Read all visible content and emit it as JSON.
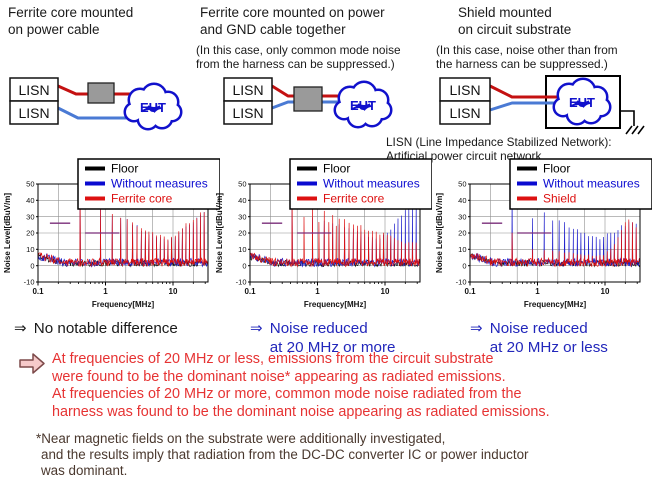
{
  "labels": {
    "lisn": "LISN",
    "eut": "EUT"
  },
  "columns": [
    {
      "title": "Ferrite core mounted\non power cable",
      "note": ""
    },
    {
      "title": "Ferrite core mounted on power\nand GND cable together",
      "note": "(In this case, only common mode noise\nfrom the harness can be suppressed.)"
    },
    {
      "title": "Shield mounted\non circuit substrate",
      "note": "(In this case, noise other than from\nthe harness can be suppressed.)"
    }
  ],
  "lisn_note": "LISN (Line Impedance Stabilized Network):\nArtificial power circuit network",
  "conclusions": [
    {
      "symbol": "⇒",
      "text": "No notable difference",
      "color": "#1a1a1a"
    },
    {
      "symbol": "⇒",
      "text": "Noise reduced\nat 20 MHz or more",
      "color": "#2227bb"
    },
    {
      "symbol": "⇒",
      "text": "Noise reduced\nat 20 MHz or less",
      "color": "#2227bb"
    }
  ],
  "summary": {
    "color": "#e63333",
    "lines": [
      "At frequencies of 20 MHz or less, emissions from the circuit substrate",
      "were found to be the dominant noise* appearing as radiated emissions.",
      "At frequencies of 20 MHz or more, common mode noise radiated from the",
      "harness was found to be the dominant noise appearing as radiated emissions."
    ]
  },
  "footnote": {
    "color": "#4a382e",
    "lines": [
      "*Near magnetic fields on the substrate were additionally investigated,",
      "and the results imply that radiation from the DC-DC converter IC or power inductor",
      "was dominant."
    ]
  },
  "colors": {
    "wire_red": "#c41111",
    "wire_blue": "#4a7ad4",
    "cloud_blue": "#1111cc",
    "ferrite_gray": "#9a9a9a",
    "limit_purple": "#7a2d7a",
    "blue_text": "#2227bb",
    "red_text": "#e63333"
  },
  "chart_data": [
    {
      "type": "line",
      "xlabel": "Frequency[MHz]",
      "ylabel": "Noise Level[dBuV/m]",
      "xlim": [
        0.1,
        33
      ],
      "ylim": [
        -10,
        50
      ],
      "xticks": [
        0.1,
        1,
        10
      ],
      "yticks": [
        50,
        40,
        30,
        20,
        10,
        0,
        -10
      ],
      "grid_x": [
        0.2,
        0.5,
        1,
        2,
        5,
        10,
        20
      ],
      "grid": true,
      "legend_pos": "top-right",
      "limit_color": "#7a2d7a",
      "limit_segments": [
        {
          "y": 26,
          "x1": 0.15,
          "x2": 0.3
        },
        {
          "y": 20,
          "x1": 0.5,
          "x2": 1.6
        }
      ],
      "legend": [
        {
          "label": "Floor",
          "color": "#000000"
        },
        {
          "label": "Without measures",
          "color": "#0a0ad0"
        },
        {
          "label": "Ferrite core",
          "color": "#dd1111"
        }
      ],
      "series": [
        {
          "name": "Floor",
          "color": "#111111",
          "base": 1.5,
          "jitter": 2,
          "start_bump": 4,
          "spikes": []
        },
        {
          "name": "Without measures",
          "color": "#2020cc",
          "base": 2,
          "jitter": 2.5,
          "start_bump": 4,
          "spikes": [
            [
              0.42,
              43
            ],
            [
              0.84,
              35
            ],
            [
              1.26,
              31
            ],
            [
              1.68,
              29
            ],
            [
              2.1,
              28
            ],
            [
              2.52,
              26
            ],
            [
              2.94,
              24
            ],
            [
              3.4,
              22
            ],
            [
              3.9,
              21
            ],
            [
              4.4,
              20
            ],
            [
              5.0,
              19
            ],
            [
              5.7,
              18
            ],
            [
              6.5,
              17
            ],
            [
              7.4,
              17
            ],
            [
              8.4,
              16
            ],
            [
              9.5,
              17
            ],
            [
              10.8,
              18
            ],
            [
              12.2,
              20
            ],
            [
              13.8,
              22
            ],
            [
              15.6,
              24
            ],
            [
              17.6,
              25
            ],
            [
              20,
              27
            ],
            [
              22.5,
              29
            ],
            [
              25.5,
              31
            ],
            [
              29,
              32
            ]
          ]
        },
        {
          "name": "Ferrite core",
          "color": "#dd1111",
          "base": 2,
          "jitter": 2.5,
          "start_bump": 4,
          "spikes": [
            [
              0.42,
              44
            ],
            [
              0.84,
              36
            ],
            [
              1.26,
              32
            ],
            [
              1.68,
              30
            ],
            [
              2.1,
              29
            ],
            [
              2.52,
              27
            ],
            [
              2.94,
              25
            ],
            [
              3.4,
              23
            ],
            [
              3.9,
              22
            ],
            [
              4.4,
              21
            ],
            [
              5.0,
              20
            ],
            [
              5.7,
              19
            ],
            [
              6.5,
              18
            ],
            [
              7.4,
              18
            ],
            [
              8.4,
              17
            ],
            [
              9.5,
              18
            ],
            [
              10.8,
              19
            ],
            [
              12.2,
              21
            ],
            [
              13.8,
              23
            ],
            [
              15.6,
              25
            ],
            [
              17.6,
              26
            ],
            [
              20,
              28
            ],
            [
              22.5,
              30
            ],
            [
              25.5,
              32
            ],
            [
              29,
              33
            ]
          ]
        }
      ]
    },
    {
      "type": "line",
      "xlabel": "Frequency[MHz]",
      "ylabel": "Noise Level[dBuV/m]",
      "xlim": [
        0.1,
        33
      ],
      "ylim": [
        -10,
        50
      ],
      "xticks": [
        0.1,
        1,
        10
      ],
      "yticks": [
        50,
        40,
        30,
        20,
        10,
        0,
        -10
      ],
      "grid_x": [
        0.2,
        0.5,
        1,
        2,
        5,
        10,
        20
      ],
      "grid": true,
      "legend_pos": "top-right",
      "limit_color": "#7a2d7a",
      "limit_segments": [
        {
          "y": 26,
          "x1": 0.15,
          "x2": 0.3
        },
        {
          "y": 20,
          "x1": 0.5,
          "x2": 1.6
        }
      ],
      "legend": [
        {
          "label": "Floor",
          "color": "#000000"
        },
        {
          "label": "Without measures",
          "color": "#0a0ad0"
        },
        {
          "label": "Ferrite core",
          "color": "#dd1111"
        }
      ],
      "series": [
        {
          "name": "Floor",
          "color": "#111111",
          "base": 1.5,
          "jitter": 2,
          "start_bump": 4,
          "spikes": []
        },
        {
          "name": "Without measures",
          "color": "#2020cc",
          "base": 2,
          "jitter": 2.5,
          "start_bump": 4,
          "spikes": [
            [
              0.42,
              38
            ],
            [
              0.84,
              30
            ],
            [
              1.26,
              28
            ],
            [
              1.68,
              26
            ],
            [
              2.1,
              25
            ],
            [
              2.52,
              24
            ],
            [
              2.94,
              23
            ],
            [
              3.4,
              22
            ],
            [
              3.9,
              21
            ],
            [
              4.4,
              20
            ],
            [
              5.0,
              19
            ],
            [
              5.7,
              18
            ],
            [
              6.5,
              18
            ],
            [
              7.4,
              17
            ],
            [
              8.4,
              17
            ],
            [
              9.5,
              18
            ],
            [
              10.8,
              20
            ],
            [
              12.2,
              22
            ],
            [
              13.8,
              25
            ],
            [
              15.6,
              28
            ],
            [
              17.6,
              31
            ],
            [
              20,
              33
            ],
            [
              22.5,
              35
            ],
            [
              25.5,
              37
            ],
            [
              29,
              38
            ]
          ]
        },
        {
          "name": "Ferrite core",
          "color": "#dd1111",
          "base": 2,
          "jitter": 2.5,
          "start_bump": 4,
          "spikes": [
            [
              0.42,
              44
            ],
            [
              0.63,
              29
            ],
            [
              0.84,
              37
            ],
            [
              1.05,
              27
            ],
            [
              1.26,
              33
            ],
            [
              1.47,
              26
            ],
            [
              1.68,
              31
            ],
            [
              1.9,
              25
            ],
            [
              2.1,
              29
            ],
            [
              2.52,
              28
            ],
            [
              2.94,
              27
            ],
            [
              3.4,
              26
            ],
            [
              3.9,
              25
            ],
            [
              4.4,
              24
            ],
            [
              5.0,
              23
            ],
            [
              5.7,
              22
            ],
            [
              6.5,
              21
            ],
            [
              7.4,
              20
            ],
            [
              8.4,
              20
            ],
            [
              9.5,
              20
            ],
            [
              10.8,
              19
            ],
            [
              12.2,
              18
            ],
            [
              13.8,
              17
            ],
            [
              15.6,
              16
            ],
            [
              17.6,
              15
            ],
            [
              20,
              14
            ],
            [
              22.5,
              14
            ],
            [
              25.5,
              15
            ],
            [
              29,
              15
            ]
          ]
        }
      ]
    },
    {
      "type": "line",
      "xlabel": "Frequency[MHz]",
      "ylabel": "Noise Level[dBuV/m]",
      "xlim": [
        0.1,
        33
      ],
      "ylim": [
        -10,
        50
      ],
      "xticks": [
        0.1,
        1,
        10
      ],
      "yticks": [
        50,
        40,
        30,
        20,
        10,
        0,
        -10
      ],
      "grid_x": [
        0.2,
        0.5,
        1,
        2,
        5,
        10,
        20
      ],
      "grid": true,
      "legend_pos": "top-right",
      "limit_color": "#7a2d7a",
      "limit_segments": [
        {
          "y": 26,
          "x1": 0.15,
          "x2": 0.3
        },
        {
          "y": 20,
          "x1": 0.5,
          "x2": 1.6
        }
      ],
      "legend": [
        {
          "label": "Floor",
          "color": "#000000"
        },
        {
          "label": "Without measures",
          "color": "#0a0ad0"
        },
        {
          "label": "Shield",
          "color": "#dd1111"
        }
      ],
      "series": [
        {
          "name": "Floor",
          "color": "#111111",
          "base": 1.5,
          "jitter": 2,
          "start_bump": 4,
          "spikes": []
        },
        {
          "name": "Without measures",
          "color": "#2020cc",
          "base": 2,
          "jitter": 2.5,
          "start_bump": 4,
          "spikes": [
            [
              0.42,
              44
            ],
            [
              0.84,
              30
            ],
            [
              1.26,
              33
            ],
            [
              1.68,
              28
            ],
            [
              2.1,
              27
            ],
            [
              2.52,
              26
            ],
            [
              2.94,
              24
            ],
            [
              3.4,
              23
            ],
            [
              3.9,
              22
            ],
            [
              4.4,
              21
            ],
            [
              5.0,
              20
            ],
            [
              5.7,
              19
            ],
            [
              6.5,
              18
            ],
            [
              7.4,
              17
            ],
            [
              8.4,
              17
            ],
            [
              9.5,
              18
            ],
            [
              10.8,
              19
            ],
            [
              12.2,
              20
            ],
            [
              13.8,
              21
            ],
            [
              15.6,
              22
            ],
            [
              17.6,
              24
            ],
            [
              20,
              25
            ],
            [
              22.5,
              26
            ],
            [
              25.5,
              27
            ],
            [
              29,
              26
            ]
          ]
        },
        {
          "name": "Shield",
          "color": "#dd1111",
          "base": 2,
          "jitter": 2.5,
          "start_bump": 4,
          "spikes": [
            [
              0.42,
              21
            ],
            [
              0.84,
              11
            ],
            [
              1.26,
              10
            ],
            [
              1.68,
              9
            ],
            [
              2.1,
              9
            ],
            [
              2.52,
              8
            ],
            [
              2.94,
              8
            ],
            [
              3.4,
              7
            ],
            [
              3.9,
              7
            ],
            [
              4.4,
              7
            ],
            [
              5.0,
              6
            ],
            [
              5.7,
              6
            ],
            [
              6.5,
              6
            ],
            [
              7.4,
              6
            ],
            [
              8.4,
              6
            ],
            [
              9.5,
              7
            ],
            [
              10.8,
              8
            ],
            [
              12.2,
              10
            ],
            [
              13.8,
              13
            ],
            [
              15.6,
              17
            ],
            [
              17.6,
              22
            ],
            [
              20,
              27
            ],
            [
              22.5,
              28
            ],
            [
              25.5,
              27
            ],
            [
              29,
              24
            ]
          ]
        }
      ]
    }
  ]
}
